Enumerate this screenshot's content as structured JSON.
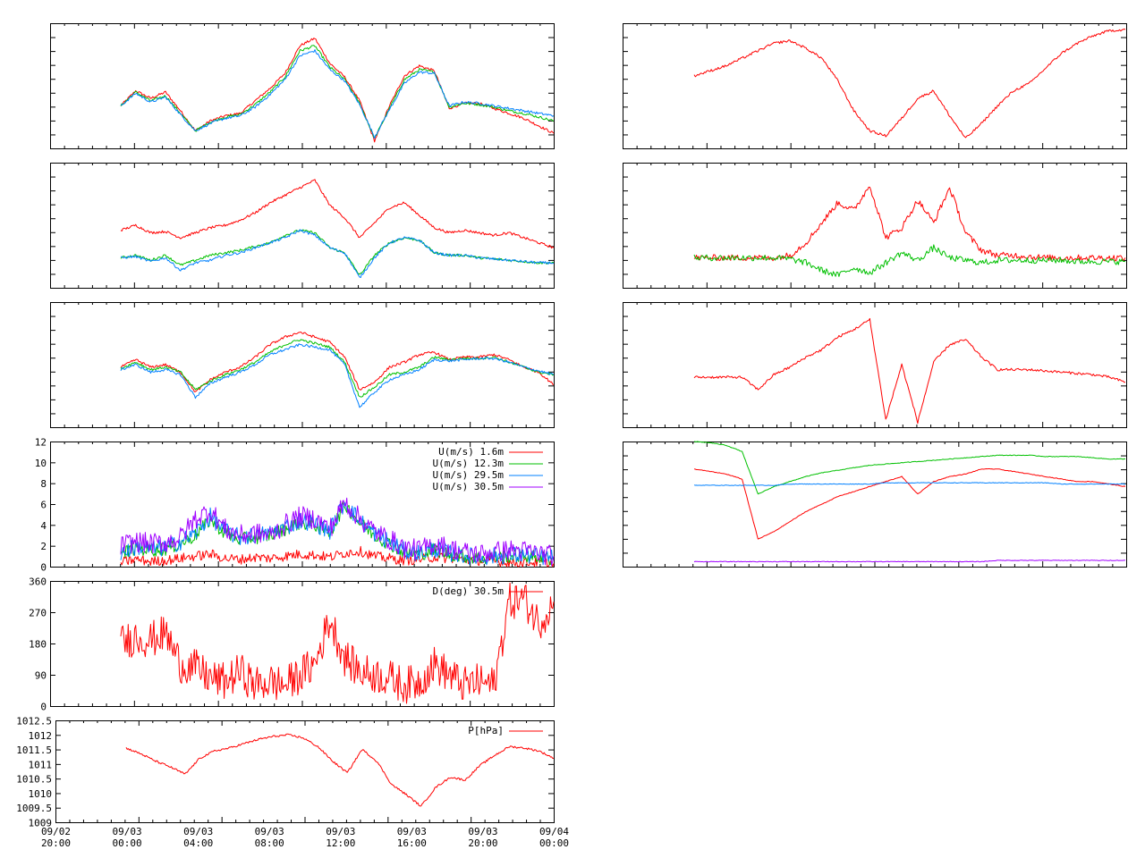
{
  "chart_data": [
    {
      "type": "line",
      "panel": "L1",
      "ylim": [
        0,
        1
      ],
      "series": [
        {
          "color": "#ff0000",
          "values": [
            0.34,
            0.46,
            0.4,
            0.45,
            0.3,
            0.14,
            0.22,
            0.26,
            0.28,
            0.38,
            0.48,
            0.6,
            0.82,
            0.88,
            0.68,
            0.57,
            0.38,
            0.06,
            0.34,
            0.58,
            0.66,
            0.62,
            0.32,
            0.36,
            0.36,
            0.32,
            0.28,
            0.24,
            0.18,
            0.12
          ]
        },
        {
          "color": "#00c000",
          "values": [
            0.34,
            0.45,
            0.38,
            0.42,
            0.28,
            0.14,
            0.21,
            0.25,
            0.27,
            0.35,
            0.45,
            0.57,
            0.78,
            0.82,
            0.65,
            0.55,
            0.36,
            0.08,
            0.32,
            0.55,
            0.63,
            0.61,
            0.33,
            0.36,
            0.35,
            0.33,
            0.3,
            0.28,
            0.25,
            0.22
          ]
        },
        {
          "color": "#0080ff",
          "values": [
            0.34,
            0.44,
            0.37,
            0.41,
            0.27,
            0.14,
            0.2,
            0.24,
            0.26,
            0.33,
            0.43,
            0.55,
            0.74,
            0.78,
            0.63,
            0.54,
            0.35,
            0.09,
            0.31,
            0.52,
            0.61,
            0.6,
            0.34,
            0.37,
            0.36,
            0.34,
            0.32,
            0.3,
            0.28,
            0.26
          ]
        }
      ]
    },
    {
      "type": "line",
      "panel": "L2",
      "ylim": [
        0,
        1
      ],
      "series": [
        {
          "color": "#ff0000",
          "values": [
            0.46,
            0.5,
            0.44,
            0.45,
            0.4,
            0.44,
            0.48,
            0.5,
            0.54,
            0.6,
            0.68,
            0.74,
            0.8,
            0.86,
            0.66,
            0.56,
            0.4,
            0.52,
            0.64,
            0.68,
            0.58,
            0.48,
            0.44,
            0.46,
            0.44,
            0.42,
            0.44,
            0.4,
            0.36,
            0.32
          ]
        },
        {
          "color": "#00c000",
          "values": [
            0.24,
            0.26,
            0.22,
            0.26,
            0.18,
            0.22,
            0.26,
            0.28,
            0.3,
            0.33,
            0.36,
            0.42,
            0.46,
            0.44,
            0.32,
            0.28,
            0.1,
            0.26,
            0.36,
            0.4,
            0.38,
            0.28,
            0.26,
            0.26,
            0.24,
            0.23,
            0.22,
            0.21,
            0.2,
            0.2
          ]
        },
        {
          "color": "#0080ff",
          "values": [
            0.24,
            0.25,
            0.21,
            0.24,
            0.14,
            0.2,
            0.22,
            0.26,
            0.28,
            0.32,
            0.36,
            0.4,
            0.46,
            0.42,
            0.32,
            0.28,
            0.08,
            0.24,
            0.36,
            0.4,
            0.38,
            0.28,
            0.26,
            0.26,
            0.24,
            0.23,
            0.22,
            0.21,
            0.2,
            0.2
          ]
        }
      ]
    },
    {
      "type": "line",
      "panel": "L3",
      "ylim": [
        0,
        1
      ],
      "series": [
        {
          "color": "#ff0000",
          "values": [
            0.48,
            0.54,
            0.48,
            0.5,
            0.44,
            0.28,
            0.38,
            0.44,
            0.48,
            0.56,
            0.66,
            0.72,
            0.76,
            0.72,
            0.68,
            0.56,
            0.3,
            0.36,
            0.48,
            0.52,
            0.58,
            0.6,
            0.54,
            0.56,
            0.56,
            0.58,
            0.54,
            0.48,
            0.44,
            0.34
          ]
        },
        {
          "color": "#00c000",
          "values": [
            0.47,
            0.52,
            0.46,
            0.48,
            0.44,
            0.3,
            0.37,
            0.42,
            0.46,
            0.52,
            0.6,
            0.66,
            0.7,
            0.67,
            0.64,
            0.52,
            0.24,
            0.32,
            0.42,
            0.44,
            0.48,
            0.56,
            0.54,
            0.55,
            0.55,
            0.56,
            0.52,
            0.48,
            0.44,
            0.42
          ]
        },
        {
          "color": "#0080ff",
          "values": [
            0.46,
            0.5,
            0.44,
            0.46,
            0.42,
            0.24,
            0.35,
            0.4,
            0.44,
            0.5,
            0.58,
            0.62,
            0.66,
            0.64,
            0.62,
            0.5,
            0.16,
            0.28,
            0.38,
            0.42,
            0.46,
            0.54,
            0.53,
            0.54,
            0.55,
            0.55,
            0.52,
            0.48,
            0.45,
            0.42
          ]
        }
      ]
    },
    {
      "type": "line",
      "panel": "L4",
      "ylim": [
        0,
        12
      ],
      "yticks": [
        "0",
        "2",
        "4",
        "6",
        "8",
        "10",
        "12"
      ],
      "series": [
        {
          "name": "U(m/s)  1.6m",
          "color": "#ff0000",
          "values": [
            0.4,
            0.7,
            0.5,
            0.6,
            0.8,
            1.0,
            1.2,
            0.8,
            0.7,
            0.9,
            0.8,
            1.0,
            1.2,
            1.1,
            0.9,
            1.3,
            1.5,
            1.0,
            0.8,
            0.6,
            0.7,
            0.9,
            0.8,
            0.7,
            0.6,
            0.5,
            0.4,
            0.4,
            0.4,
            0.3
          ]
        },
        {
          "name": "U(m/s) 12.3m",
          "color": "#00c000",
          "values": [
            1.2,
            1.8,
            1.6,
            1.7,
            2.2,
            3.0,
            4.5,
            3.2,
            2.6,
            2.8,
            3.0,
            3.6,
            4.2,
            4.0,
            3.2,
            6.0,
            4.2,
            3.0,
            2.2,
            1.4,
            1.2,
            1.6,
            1.2,
            1.0,
            0.8,
            0.9,
            1.0,
            1.0,
            0.9,
            0.7
          ]
        },
        {
          "name": "U(m/s) 29.5m",
          "color": "#0080ff",
          "values": [
            1.3,
            1.9,
            1.7,
            1.8,
            2.4,
            3.2,
            4.8,
            3.4,
            2.8,
            3.0,
            3.2,
            3.8,
            4.4,
            4.2,
            3.4,
            6.2,
            4.4,
            3.2,
            2.4,
            1.5,
            1.3,
            1.7,
            1.3,
            1.1,
            0.9,
            1.0,
            1.1,
            1.1,
            1.0,
            0.8
          ]
        },
        {
          "name": "U(m/s) 30.5m",
          "color": "#a000ff",
          "values": [
            2.0,
            2.4,
            2.2,
            2.3,
            2.8,
            4.6,
            5.4,
            3.6,
            3.0,
            3.2,
            3.0,
            4.0,
            4.8,
            4.6,
            3.6,
            6.2,
            4.6,
            3.4,
            2.6,
            1.8,
            1.6,
            2.2,
            1.8,
            1.4,
            1.2,
            1.4,
            1.6,
            1.5,
            1.3,
            1.0
          ]
        }
      ]
    },
    {
      "type": "line",
      "panel": "L5",
      "ylim": [
        0,
        360
      ],
      "yticks": [
        "0",
        "90",
        "180",
        "270",
        "360"
      ],
      "series": [
        {
          "name": "D(deg)  30.5m",
          "color": "#ff0000",
          "values": [
            180,
            200,
            190,
            210,
            120,
            110,
            80,
            70,
            100,
            60,
            70,
            60,
            90,
            120,
            250,
            140,
            100,
            90,
            80,
            60,
            70,
            120,
            90,
            60,
            70,
            60,
            300,
            310,
            240,
            300
          ]
        }
      ]
    },
    {
      "type": "line",
      "panel": "L6",
      "ylim": [
        1009,
        1012.5
      ],
      "yticks": [
        "1009",
        "1009.5",
        "1010",
        "1010.5",
        "1011",
        "1011.5",
        "1012",
        "1012.5"
      ],
      "xticks": [
        [
          "09/02",
          "20:00"
        ],
        [
          "09/03",
          "00:00"
        ],
        [
          "09/03",
          "04:00"
        ],
        [
          "09/03",
          "08:00"
        ],
        [
          "09/03",
          "12:00"
        ],
        [
          "09/03",
          "16:00"
        ],
        [
          "09/03",
          "20:00"
        ],
        [
          "09/04",
          "00:00"
        ]
      ],
      "series": [
        {
          "name": "P[hPa]",
          "color": "#ff0000",
          "values": [
            1011.55,
            1011.35,
            1011.1,
            1010.9,
            1010.65,
            1011.2,
            1011.45,
            1011.55,
            1011.7,
            1011.85,
            1011.95,
            1012.0,
            1011.9,
            1011.6,
            1011.1,
            1010.7,
            1011.5,
            1011.1,
            1010.3,
            1009.95,
            1009.55,
            1010.2,
            1010.55,
            1010.45,
            1010.95,
            1011.3,
            1011.6,
            1011.55,
            1011.45,
            1011.2
          ]
        }
      ]
    },
    {
      "type": "line",
      "panel": "R1",
      "ylim": [
        0,
        1
      ],
      "series": [
        {
          "color": "#ff0000",
          "values": [
            0.58,
            0.62,
            0.66,
            0.72,
            0.78,
            0.84,
            0.86,
            0.8,
            0.72,
            0.54,
            0.3,
            0.14,
            0.1,
            0.24,
            0.4,
            0.46,
            0.26,
            0.08,
            0.2,
            0.34,
            0.46,
            0.52,
            0.64,
            0.76,
            0.84,
            0.9,
            0.94,
            0.95
          ]
        }
      ]
    },
    {
      "type": "line",
      "panel": "R2",
      "ylim": [
        0,
        1
      ],
      "series": [
        {
          "color": "#ff0000",
          "values": [
            0.24,
            0.24,
            0.24,
            0.24,
            0.24,
            0.24,
            0.26,
            0.36,
            0.52,
            0.68,
            0.62,
            0.82,
            0.4,
            0.48,
            0.7,
            0.52,
            0.8,
            0.44,
            0.3,
            0.26,
            0.26,
            0.25,
            0.24,
            0.24,
            0.24,
            0.24,
            0.24,
            0.24
          ]
        },
        {
          "color": "#00c000",
          "values": [
            0.24,
            0.24,
            0.24,
            0.24,
            0.24,
            0.24,
            0.23,
            0.2,
            0.14,
            0.1,
            0.16,
            0.12,
            0.2,
            0.28,
            0.22,
            0.32,
            0.24,
            0.22,
            0.2,
            0.22,
            0.22,
            0.22,
            0.22,
            0.22,
            0.21,
            0.21,
            0.21,
            0.21
          ]
        }
      ]
    },
    {
      "type": "line",
      "panel": "R3",
      "ylim": [
        0,
        1
      ],
      "series": [
        {
          "color": "#ff0000",
          "values": [
            0.4,
            0.4,
            0.4,
            0.4,
            0.3,
            0.42,
            0.48,
            0.56,
            0.62,
            0.72,
            0.78,
            0.86,
            0.06,
            0.5,
            0.04,
            0.52,
            0.66,
            0.7,
            0.56,
            0.46,
            0.46,
            0.46,
            0.45,
            0.44,
            0.43,
            0.42,
            0.4,
            0.36
          ]
        }
      ]
    },
    {
      "type": "line",
      "panel": "R4",
      "ylim": [
        0,
        1
      ],
      "series": [
        {
          "color": "#00c000",
          "values": [
            1.0,
            0.99,
            0.97,
            0.92,
            0.58,
            0.64,
            0.68,
            0.72,
            0.75,
            0.77,
            0.79,
            0.81,
            0.82,
            0.83,
            0.84,
            0.85,
            0.86,
            0.87,
            0.88,
            0.89,
            0.89,
            0.89,
            0.88,
            0.88,
            0.88,
            0.87,
            0.86,
            0.86
          ]
        },
        {
          "color": "#ff0000",
          "values": [
            0.78,
            0.76,
            0.74,
            0.7,
            0.22,
            0.28,
            0.36,
            0.44,
            0.5,
            0.56,
            0.6,
            0.64,
            0.68,
            0.72,
            0.58,
            0.68,
            0.72,
            0.74,
            0.78,
            0.78,
            0.76,
            0.74,
            0.72,
            0.7,
            0.68,
            0.68,
            0.66,
            0.64
          ]
        },
        {
          "color": "#0080ff",
          "values": [
            0.65,
            0.65,
            0.65,
            0.65,
            0.65,
            0.65,
            0.66,
            0.66,
            0.66,
            0.66,
            0.66,
            0.66,
            0.67,
            0.67,
            0.67,
            0.67,
            0.67,
            0.67,
            0.67,
            0.67,
            0.67,
            0.67,
            0.67,
            0.66,
            0.66,
            0.66,
            0.66,
            0.66
          ]
        },
        {
          "color": "#a000ff",
          "values": [
            0.04,
            0.04,
            0.04,
            0.04,
            0.04,
            0.04,
            0.04,
            0.04,
            0.04,
            0.04,
            0.04,
            0.04,
            0.04,
            0.04,
            0.04,
            0.04,
            0.04,
            0.04,
            0.04,
            0.05,
            0.05,
            0.05,
            0.05,
            0.05,
            0.05,
            0.05,
            0.05,
            0.05
          ]
        }
      ]
    }
  ]
}
